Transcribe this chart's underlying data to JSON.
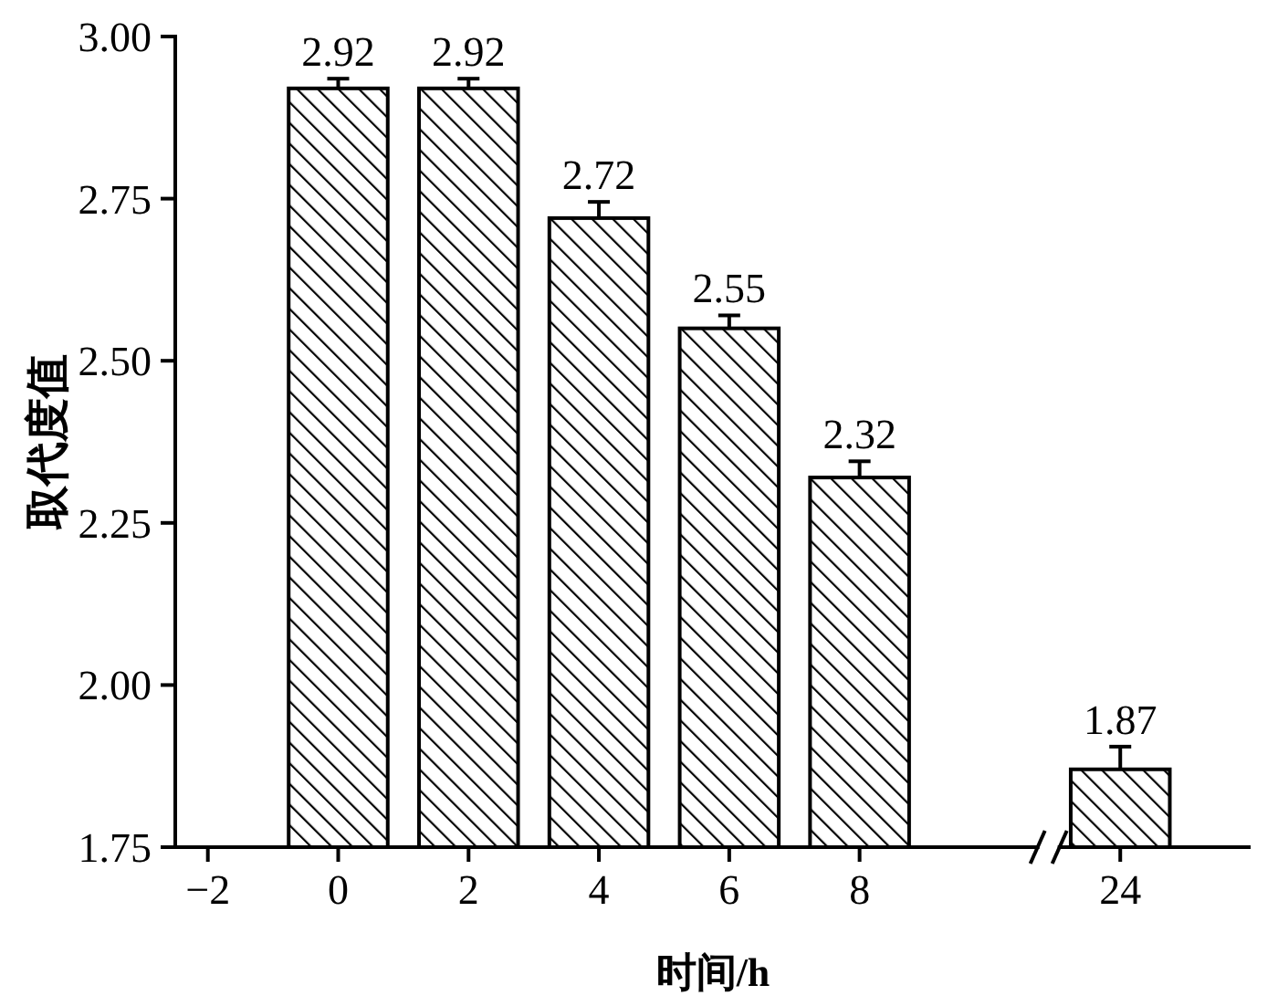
{
  "chart_data": {
    "type": "bar",
    "xlabel": "时间/h",
    "ylabel": "取代度值",
    "categories": [
      "−2",
      "0",
      "2",
      "4",
      "6",
      "8",
      null,
      "24"
    ],
    "values": [
      null,
      2.92,
      2.92,
      2.72,
      2.55,
      2.32,
      null,
      1.87
    ],
    "errors": [
      null,
      0.015,
      0.015,
      0.025,
      0.02,
      0.025,
      null,
      0.035
    ],
    "color": "#000000",
    "ylim": [
      1.75,
      3.0
    ],
    "yticks": [
      {
        "value": 1.75,
        "label": "1.75"
      },
      {
        "value": 2.0,
        "label": "2.00"
      },
      {
        "value": 2.25,
        "label": "2.25"
      },
      {
        "value": 2.5,
        "label": "2.50"
      },
      {
        "value": 2.75,
        "label": "2.75"
      },
      {
        "value": 3.0,
        "label": "3.00"
      }
    ],
    "data_labels": true
  }
}
